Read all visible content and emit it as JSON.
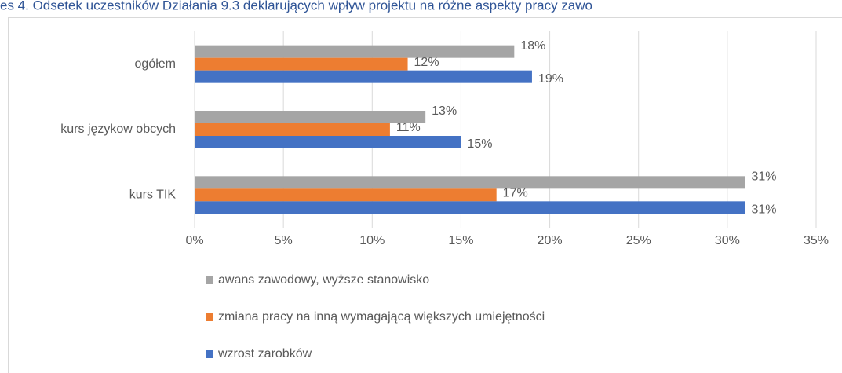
{
  "chart_data": {
    "type": "bar",
    "orientation": "horizontal",
    "title": "es 4. Odsetek uczestników Działania 9.3 deklarujących wpływ projektu na różne aspekty pracy zawo",
    "categories": [
      "ogółem",
      "kurs językow obcych",
      "kurs TIK"
    ],
    "series": [
      {
        "name": "awans zawodowy, wyższe stanowisko",
        "color": "#a5a5a5",
        "values": [
          18,
          13,
          31
        ],
        "value_labels": [
          "18%",
          "13%",
          "31%"
        ]
      },
      {
        "name": "zmiana pracy na inną wymagającą większych umiejętności",
        "color": "#ed7d31",
        "values": [
          12,
          11,
          17
        ],
        "value_labels": [
          "12%",
          "11%",
          "17%"
        ]
      },
      {
        "name": "wzrost zarobków",
        "color": "#4472c4",
        "values": [
          19,
          15,
          31
        ],
        "value_labels": [
          "19%",
          "15%",
          "31%"
        ]
      }
    ],
    "xlim": [
      0,
      35
    ],
    "xticks": [
      {
        "value": 0,
        "label": "0%"
      },
      {
        "value": 5,
        "label": "5%"
      },
      {
        "value": 10,
        "label": "10%"
      },
      {
        "value": 15,
        "label": "15%"
      },
      {
        "value": 20,
        "label": "20%"
      },
      {
        "value": 25,
        "label": "25%"
      },
      {
        "value": 30,
        "label": "30%"
      },
      {
        "value": 35,
        "label": "35%"
      }
    ],
    "grid": true,
    "legend": "bottom-left"
  }
}
